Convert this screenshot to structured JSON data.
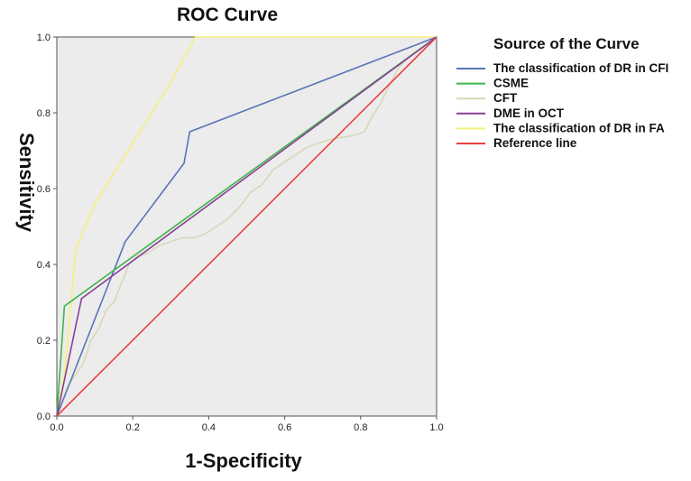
{
  "chart_data": {
    "type": "line",
    "title": "ROC Curve",
    "xlabel": "1-Specificity",
    "ylabel": "Sensitivity",
    "xlim": [
      0,
      1
    ],
    "ylim": [
      0,
      1
    ],
    "xticks": [
      "0.0",
      "0.2",
      "0.4",
      "0.6",
      "0.8",
      "1.0"
    ],
    "yticks": [
      "0.0",
      "0.2",
      "0.4",
      "0.6",
      "0.8",
      "1.0"
    ],
    "legend_title": "Source of the Curve",
    "legend_position": "right",
    "plot_background": "#ececec",
    "series": [
      {
        "name": "The classification of DR in CFI",
        "color": "#5b74b8",
        "x": [
          0,
          0.18,
          0.335,
          0.35,
          1.0
        ],
        "y": [
          0,
          0.46,
          0.667,
          0.75,
          1.0
        ]
      },
      {
        "name": "CSME",
        "color": "#3fb54a",
        "x": [
          0,
          0.02,
          1.0
        ],
        "y": [
          0,
          0.29,
          1.0
        ]
      },
      {
        "name": "CFT",
        "color": "#d8d6ba",
        "x": [
          0,
          0.03,
          0.05,
          0.07,
          0.09,
          0.11,
          0.13,
          0.15,
          0.17,
          0.19,
          0.21,
          0.24,
          0.27,
          0.3,
          0.33,
          0.36,
          0.39,
          0.42,
          0.45,
          0.48,
          0.51,
          0.54,
          0.57,
          0.6,
          0.63,
          0.66,
          0.69,
          0.72,
          0.75,
          0.78,
          0.81,
          0.83,
          0.85,
          0.87,
          0.9,
          0.93,
          0.96,
          1.0
        ],
        "y": [
          0,
          0.08,
          0.11,
          0.14,
          0.2,
          0.23,
          0.28,
          0.3,
          0.35,
          0.4,
          0.42,
          0.43,
          0.45,
          0.46,
          0.47,
          0.47,
          0.48,
          0.5,
          0.52,
          0.55,
          0.59,
          0.61,
          0.65,
          0.67,
          0.69,
          0.71,
          0.72,
          0.73,
          0.735,
          0.74,
          0.75,
          0.79,
          0.82,
          0.86,
          0.92,
          0.95,
          0.97,
          1.0
        ]
      },
      {
        "name": "DME in OCT",
        "color": "#8a3f97",
        "x": [
          0,
          0.065,
          1.0
        ],
        "y": [
          0,
          0.31,
          1.0
        ]
      },
      {
        "name": "The classification of DR in FA",
        "color": "#f5f07a",
        "x": [
          0,
          0.02,
          0.05,
          0.1,
          0.2,
          0.3,
          0.365,
          1.0
        ],
        "y": [
          0,
          0.11,
          0.44,
          0.56,
          0.72,
          0.88,
          1.0,
          1.0
        ]
      },
      {
        "name": "Reference line",
        "color": "#e8423f",
        "x": [
          0,
          1.0
        ],
        "y": [
          0,
          1.0
        ]
      }
    ]
  }
}
